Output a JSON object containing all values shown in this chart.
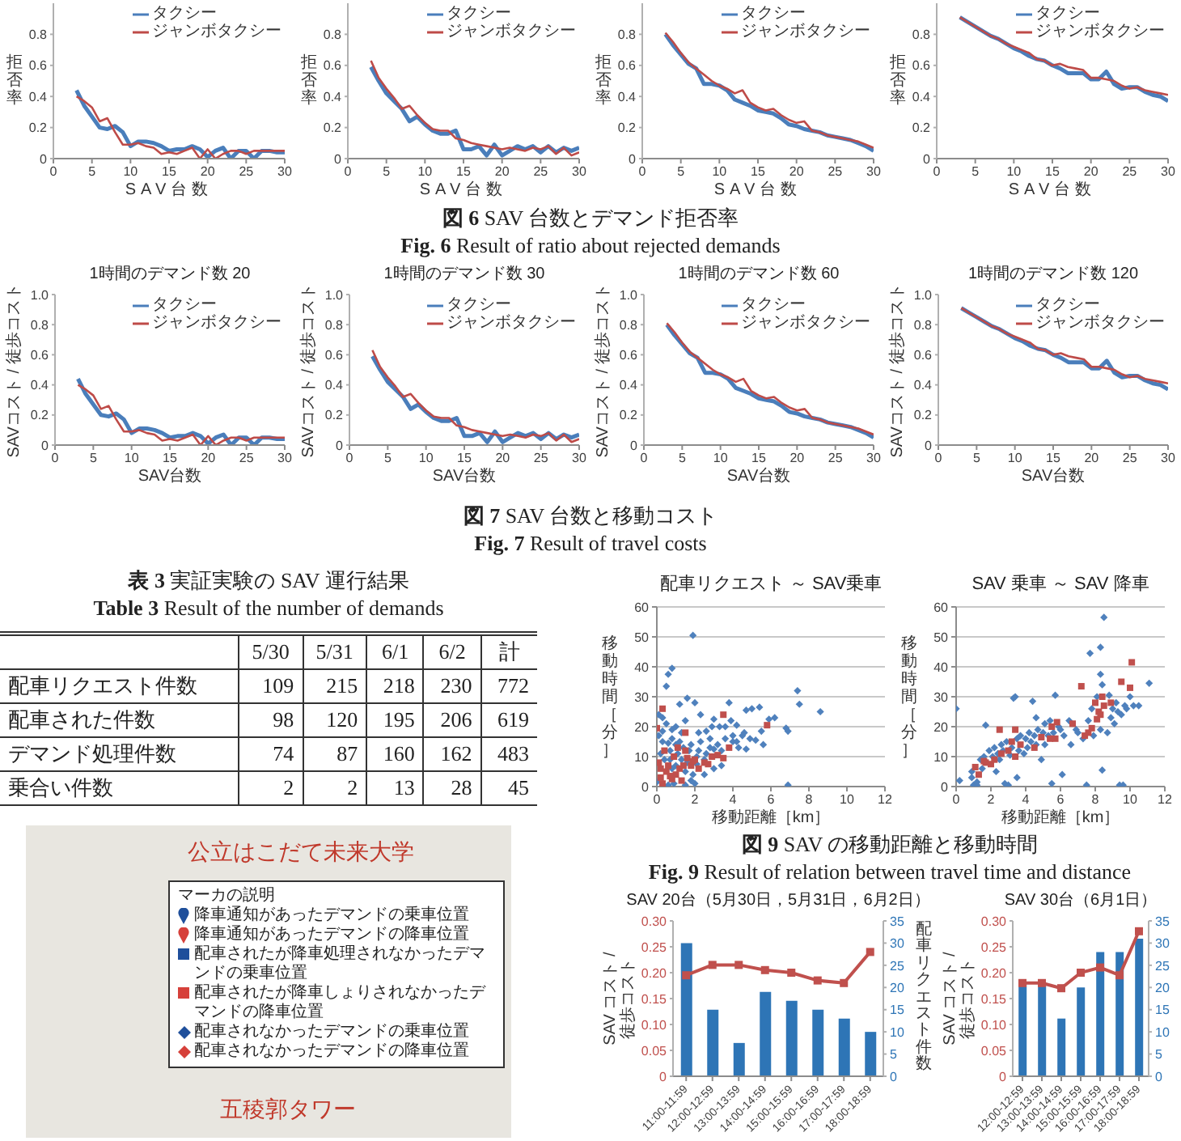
{
  "chart_data": [
    {
      "type": "line",
      "ylabel": "拒否率",
      "xlabel": "SAV台数",
      "x": [
        3,
        4,
        5,
        6,
        7,
        8,
        9,
        10,
        11,
        12,
        13,
        14,
        15,
        16,
        17,
        18,
        19,
        20,
        21,
        22,
        23,
        24,
        25,
        26,
        27,
        28,
        29,
        30
      ],
      "series": [
        {
          "name": "タクシー",
          "color": "#4a7ebb",
          "values": [
            0.44,
            0.34,
            0.27,
            0.2,
            0.19,
            0.21,
            0.17,
            0.08,
            0.11,
            0.11,
            0.1,
            0.08,
            0.05,
            0.06,
            0.06,
            0.08,
            0.06,
            0.01,
            0.05,
            0.07,
            0,
            0.05,
            0.05,
            0,
            0.05,
            0.05,
            0.04,
            0.04
          ]
        },
        {
          "name": "ジャンボタクシー",
          "color": "#be4b48",
          "values": [
            0.4,
            0.37,
            0.33,
            0.24,
            0.26,
            0.17,
            0.09,
            0.09,
            0.1,
            0.08,
            0.07,
            0.03,
            0.04,
            0.03,
            0.05,
            0.07,
            0,
            0.06,
            0,
            0.03,
            0.05,
            0.05,
            0.03,
            0.05,
            0.05,
            0.05,
            0.05,
            0.05
          ]
        }
      ],
      "xlim": [
        0,
        30
      ],
      "xticks": [
        0,
        5,
        10,
        15,
        20,
        25,
        30
      ],
      "ylim": [
        0,
        1
      ],
      "yticks": [
        0,
        0.2,
        0.4,
        0.6,
        0.8
      ],
      "legend": "top right",
      "annotations": [
        "図 6 SAV 台数とデマンド拒否率",
        "Fig. 6 Result of ratio about rejected demands"
      ]
    },
    {
      "type": "line",
      "ylabel": "拒否率",
      "xlabel": "SAV台数",
      "x": [
        3,
        4,
        5,
        6,
        7,
        8,
        9,
        10,
        11,
        12,
        13,
        14,
        15,
        16,
        17,
        18,
        19,
        20,
        21,
        22,
        23,
        24,
        25,
        26,
        27,
        28,
        29,
        30
      ],
      "series": [
        {
          "name": "タクシー",
          "color": "#4a7ebb",
          "values": [
            0.59,
            0.5,
            0.42,
            0.37,
            0.32,
            0.24,
            0.27,
            0.22,
            0.18,
            0.16,
            0.16,
            0.18,
            0.06,
            0.06,
            0.08,
            0.02,
            0.09,
            0.02,
            0.05,
            0.08,
            0.06,
            0.08,
            0.04,
            0.08,
            0.04,
            0.07,
            0.05,
            0.07
          ]
        },
        {
          "name": "ジャンボタクシー",
          "color": "#be4b48",
          "values": [
            0.63,
            0.52,
            0.45,
            0.39,
            0.32,
            0.34,
            0.28,
            0.23,
            0.19,
            0.18,
            0.18,
            0.13,
            0.12,
            0.1,
            0.09,
            0.08,
            0.07,
            0.06,
            0.07,
            0.06,
            0.05,
            0.07,
            0.06,
            0.08,
            0.03,
            0.07,
            0.02,
            0.04
          ]
        }
      ],
      "xlim": [
        0,
        30
      ],
      "xticks": [
        0,
        5,
        10,
        15,
        20,
        25,
        30
      ],
      "ylim": [
        0,
        1
      ],
      "yticks": [
        0,
        0.2,
        0.4,
        0.6,
        0.8
      ],
      "legend": "top right"
    },
    {
      "type": "line",
      "ylabel": "拒否率",
      "xlabel": "SAV台数",
      "x": [
        3,
        4,
        5,
        6,
        7,
        8,
        9,
        10,
        11,
        12,
        13,
        14,
        15,
        16,
        17,
        18,
        19,
        20,
        21,
        22,
        23,
        24,
        25,
        26,
        27,
        28,
        29,
        30
      ],
      "series": [
        {
          "name": "タクシー",
          "color": "#4a7ebb",
          "values": [
            0.8,
            0.73,
            0.67,
            0.61,
            0.58,
            0.48,
            0.48,
            0.47,
            0.44,
            0.38,
            0.36,
            0.34,
            0.31,
            0.3,
            0.29,
            0.26,
            0.22,
            0.21,
            0.19,
            0.18,
            0.17,
            0.15,
            0.14,
            0.13,
            0.12,
            0.1,
            0.08,
            0.05
          ]
        },
        {
          "name": "ジャンボタクシー",
          "color": "#be4b48",
          "values": [
            0.81,
            0.75,
            0.68,
            0.62,
            0.58,
            0.54,
            0.5,
            0.47,
            0.45,
            0.42,
            0.44,
            0.36,
            0.33,
            0.31,
            0.32,
            0.28,
            0.25,
            0.23,
            0.24,
            0.18,
            0.17,
            0.15,
            0.14,
            0.13,
            0.12,
            0.11,
            0.09,
            0.07
          ]
        }
      ],
      "xlim": [
        0,
        30
      ],
      "xticks": [
        0,
        5,
        10,
        15,
        20,
        25,
        30
      ],
      "ylim": [
        0,
        1
      ],
      "yticks": [
        0,
        0.2,
        0.4,
        0.6,
        0.8
      ],
      "legend": "top right"
    },
    {
      "type": "line",
      "ylabel": "拒否率",
      "xlabel": "SAV台数",
      "x": [
        3,
        4,
        5,
        6,
        7,
        8,
        9,
        10,
        11,
        12,
        13,
        14,
        15,
        16,
        17,
        18,
        19,
        20,
        21,
        22,
        23,
        24,
        25,
        26,
        27,
        28,
        29,
        30
      ],
      "series": [
        {
          "name": "タクシー",
          "color": "#4a7ebb",
          "values": [
            0.91,
            0.88,
            0.85,
            0.82,
            0.79,
            0.77,
            0.74,
            0.71,
            0.69,
            0.66,
            0.64,
            0.63,
            0.6,
            0.58,
            0.55,
            0.55,
            0.55,
            0.51,
            0.51,
            0.56,
            0.48,
            0.45,
            0.46,
            0.46,
            0.43,
            0.41,
            0.4,
            0.37
          ]
        },
        {
          "name": "ジャンボタクシー",
          "color": "#be4b48",
          "values": [
            0.91,
            0.88,
            0.85,
            0.82,
            0.79,
            0.77,
            0.74,
            0.72,
            0.7,
            0.68,
            0.64,
            0.63,
            0.6,
            0.61,
            0.59,
            0.58,
            0.57,
            0.52,
            0.52,
            0.51,
            0.5,
            0.47,
            0.45,
            0.46,
            0.44,
            0.43,
            0.42,
            0.41
          ]
        }
      ],
      "xlim": [
        0,
        30
      ],
      "xticks": [
        0,
        5,
        10,
        15,
        20,
        25,
        30
      ],
      "ylim": [
        0,
        1
      ],
      "yticks": [
        0,
        0.2,
        0.4,
        0.6,
        0.8
      ],
      "legend": "top right"
    },
    {
      "type": "line",
      "title": "1時間のデマンド数 20",
      "ylabel": "SAVコスト / 徒歩コスト",
      "xlabel": "SAV台数",
      "x": [
        3,
        4,
        5,
        6,
        7,
        8,
        9,
        10,
        11,
        12,
        13,
        14,
        15,
        16,
        17,
        18,
        19,
        20,
        21,
        22,
        23,
        24,
        25,
        26,
        27,
        28,
        29,
        30
      ],
      "series": [
        {
          "name": "タクシー",
          "color": "#4a7ebb",
          "values": [
            0.44,
            0.34,
            0.27,
            0.2,
            0.19,
            0.21,
            0.17,
            0.08,
            0.11,
            0.11,
            0.1,
            0.08,
            0.05,
            0.06,
            0.06,
            0.08,
            0.06,
            0.01,
            0.05,
            0.07,
            0,
            0.05,
            0.05,
            0,
            0.05,
            0.05,
            0.04,
            0.04
          ]
        },
        {
          "name": "ジャンボタクシー",
          "color": "#be4b48",
          "values": [
            0.4,
            0.37,
            0.33,
            0.24,
            0.26,
            0.17,
            0.09,
            0.09,
            0.1,
            0.08,
            0.07,
            0.03,
            0.04,
            0.03,
            0.05,
            0.07,
            0,
            0.06,
            0,
            0.03,
            0.05,
            0.05,
            0.03,
            0.05,
            0.05,
            0.05,
            0.05,
            0.05
          ]
        }
      ],
      "xlim": [
        0,
        30
      ],
      "xticks": [
        0,
        5,
        10,
        15,
        20,
        25,
        30
      ],
      "ylim": [
        0,
        1
      ],
      "yticks": [
        0,
        0.2,
        0.4,
        0.6,
        0.8,
        {
          "value": 1,
          "label": "1.0"
        }
      ],
      "legend": "top right",
      "annotations": [
        "図 7 SAV 台数と移動コスト",
        "Fig. 7 Result of travel costs"
      ]
    },
    {
      "type": "line",
      "title": "1時間のデマンド数 30",
      "ylabel": "SAVコスト / 徒歩コスト",
      "xlabel": "SAV台数",
      "x": [
        3,
        4,
        5,
        6,
        7,
        8,
        9,
        10,
        11,
        12,
        13,
        14,
        15,
        16,
        17,
        18,
        19,
        20,
        21,
        22,
        23,
        24,
        25,
        26,
        27,
        28,
        29,
        30
      ],
      "series": [
        {
          "name": "タクシー",
          "color": "#4a7ebb",
          "values": [
            0.59,
            0.5,
            0.42,
            0.37,
            0.32,
            0.24,
            0.27,
            0.22,
            0.18,
            0.16,
            0.16,
            0.18,
            0.06,
            0.06,
            0.08,
            0.02,
            0.09,
            0.02,
            0.05,
            0.08,
            0.06,
            0.08,
            0.04,
            0.08,
            0.04,
            0.07,
            0.05,
            0.07
          ]
        },
        {
          "name": "ジャンボタクシー",
          "color": "#be4b48",
          "values": [
            0.63,
            0.52,
            0.45,
            0.39,
            0.32,
            0.34,
            0.28,
            0.23,
            0.19,
            0.18,
            0.18,
            0.13,
            0.12,
            0.1,
            0.09,
            0.08,
            0.07,
            0.06,
            0.07,
            0.06,
            0.05,
            0.07,
            0.06,
            0.08,
            0.03,
            0.07,
            0.02,
            0.04
          ]
        }
      ],
      "xlim": [
        0,
        30
      ],
      "xticks": [
        0,
        5,
        10,
        15,
        20,
        25,
        30
      ],
      "ylim": [
        0,
        1
      ],
      "yticks": [
        0,
        0.2,
        0.4,
        0.6,
        0.8,
        {
          "value": 1,
          "label": "1.0"
        }
      ],
      "legend": "top right"
    },
    {
      "type": "line",
      "title": "1時間のデマンド数 60",
      "ylabel": "SAVコスト / 徒歩コスト",
      "xlabel": "SAV台数",
      "x": [
        3,
        4,
        5,
        6,
        7,
        8,
        9,
        10,
        11,
        12,
        13,
        14,
        15,
        16,
        17,
        18,
        19,
        20,
        21,
        22,
        23,
        24,
        25,
        26,
        27,
        28,
        29,
        30
      ],
      "series": [
        {
          "name": "タクシー",
          "color": "#4a7ebb",
          "values": [
            0.8,
            0.73,
            0.67,
            0.61,
            0.58,
            0.48,
            0.48,
            0.47,
            0.44,
            0.38,
            0.36,
            0.34,
            0.31,
            0.3,
            0.29,
            0.26,
            0.22,
            0.21,
            0.19,
            0.18,
            0.17,
            0.15,
            0.14,
            0.13,
            0.12,
            0.1,
            0.08,
            0.05
          ]
        },
        {
          "name": "ジャンボタクシー",
          "color": "#be4b48",
          "values": [
            0.81,
            0.75,
            0.68,
            0.62,
            0.58,
            0.54,
            0.5,
            0.47,
            0.45,
            0.42,
            0.44,
            0.36,
            0.33,
            0.31,
            0.32,
            0.28,
            0.25,
            0.23,
            0.24,
            0.18,
            0.17,
            0.15,
            0.14,
            0.13,
            0.12,
            0.11,
            0.09,
            0.07
          ]
        }
      ],
      "xlim": [
        0,
        30
      ],
      "xticks": [
        0,
        5,
        10,
        15,
        20,
        25,
        30
      ],
      "ylim": [
        0,
        1
      ],
      "yticks": [
        0,
        0.2,
        0.4,
        0.6,
        0.8,
        {
          "value": 1,
          "label": "1.0"
        }
      ],
      "legend": "top right"
    },
    {
      "type": "line",
      "title": "1時間のデマンド数 120",
      "ylabel": "SAVコスト / 徒歩コスト",
      "xlabel": "SAV台数",
      "x": [
        3,
        4,
        5,
        6,
        7,
        8,
        9,
        10,
        11,
        12,
        13,
        14,
        15,
        16,
        17,
        18,
        19,
        20,
        21,
        22,
        23,
        24,
        25,
        26,
        27,
        28,
        29,
        30
      ],
      "series": [
        {
          "name": "タクシー",
          "color": "#4a7ebb",
          "values": [
            0.91,
            0.88,
            0.85,
            0.82,
            0.79,
            0.77,
            0.74,
            0.71,
            0.69,
            0.66,
            0.64,
            0.63,
            0.6,
            0.58,
            0.55,
            0.55,
            0.55,
            0.51,
            0.51,
            0.56,
            0.48,
            0.45,
            0.46,
            0.46,
            0.43,
            0.41,
            0.4,
            0.37
          ]
        },
        {
          "name": "ジャンボタクシー",
          "color": "#be4b48",
          "values": [
            0.91,
            0.88,
            0.85,
            0.82,
            0.79,
            0.77,
            0.74,
            0.72,
            0.7,
            0.68,
            0.64,
            0.63,
            0.6,
            0.61,
            0.59,
            0.58,
            0.57,
            0.52,
            0.52,
            0.51,
            0.5,
            0.47,
            0.45,
            0.46,
            0.44,
            0.43,
            0.42,
            0.41
          ]
        }
      ],
      "xlim": [
        0,
        30
      ],
      "xticks": [
        0,
        5,
        10,
        15,
        20,
        25,
        30
      ],
      "ylim": [
        0,
        1
      ],
      "yticks": [
        0,
        0.2,
        0.4,
        0.6,
        0.8,
        {
          "value": 1,
          "label": "1.0"
        }
      ],
      "legend": "top right"
    },
    {
      "type": "other",
      "title": "表 3 実証実験の SAV 運行結果",
      "subtitle": "Table 3 Result of the number of demands",
      "categories": [
        "5/30",
        "5/31",
        "6/1",
        "6/2",
        "計"
      ],
      "series": [
        {
          "name": "配車リクエスト件数",
          "values": [
            109,
            215,
            218,
            230,
            772
          ]
        },
        {
          "name": "配車された件数",
          "values": [
            98,
            120,
            195,
            206,
            619
          ]
        },
        {
          "name": "デマンド処理件数",
          "values": [
            74,
            87,
            160,
            162,
            483
          ]
        },
        {
          "name": "乗合い件数",
          "values": [
            2,
            2,
            13,
            28,
            45
          ]
        }
      ],
      "data_labels": true
    },
    {
      "type": "other",
      "legend_title": "マーカの説明",
      "annotations": [
        "公立はこだて未来大学",
        "五稜郭タワー",
        "降車通知があったデマンドの乗車位置",
        "降車通知があったデマンドの降車位置",
        "配車されたが降車処理されなかったデマンドの乗車位置",
        "配車されたが降車しょりされなかったデマンドの降車位置",
        "配車されなかったデマンドの乗車位置",
        "配車されなかったデマンドの降車位置"
      ]
    },
    {
      "type": "scatter",
      "title": "配車リクエスト ～ SAV乗車",
      "xlabel": "移動距離［km］",
      "ylabel": "移動時間［分］",
      "xlim": [
        0,
        12
      ],
      "xticks": [
        0,
        2,
        4,
        6,
        8,
        10,
        12
      ],
      "ylim": [
        0,
        60
      ],
      "yticks": [
        0,
        10,
        20,
        30,
        40,
        50,
        60
      ],
      "grid": "y",
      "series": [
        {
          "color": "#4f81bd",
          "marker": "diamond",
          "x": [
            0,
            0.4,
            0.2,
            0.6,
            0.3,
            0.1,
            0.8,
            0.7,
            0.7,
            1.0,
            0.8,
            1.0,
            1.3,
            1.1,
            1.4,
            1.2,
            1.5,
            1.6,
            1.7,
            1.8,
            1.9,
            2.1,
            2.1,
            2.2,
            2.3,
            2.5,
            2.6,
            2.8,
            3.0,
            3.2,
            3.4,
            3.6,
            4.0,
            4.2,
            4.5,
            0.3,
            0.5,
            0.1,
            0.3,
            0.8,
            1.0,
            1.3,
            1.5,
            1.2,
            1.6,
            2.0,
            0.5,
            0.6,
            0.8,
            1.9,
            2.3,
            2.6,
            2.8,
            3.0,
            3.3,
            3.6,
            3.8,
            4.0,
            4.2,
            4.6,
            4.7,
            4.9,
            5.0,
            5.2,
            5.4,
            5.5,
            5.9,
            6.2,
            6.8,
            6.9,
            7.4,
            7.5,
            8.6,
            6.9,
            1.5,
            2.0,
            0.6,
            1.8,
            2.5,
            3.0,
            3.4,
            4.3,
            4.7,
            5.6,
            0.9,
            2.2,
            2.9,
            3.9
          ],
          "values": [
            1.5,
            9,
            11,
            14.5,
            15,
            17,
            6,
            9,
            12,
            14,
            16,
            7,
            9,
            11,
            13,
            15,
            5,
            8,
            12,
            14,
            4,
            7.5,
            10,
            12,
            15,
            9,
            11,
            13,
            12.5,
            14,
            12,
            16,
            15,
            15,
            17,
            18.5,
            21,
            24,
            23,
            19,
            20,
            18,
            22,
            27.5,
            29.5,
            28,
            33.5,
            37.5,
            39.5,
            50.5,
            24,
            18.5,
            16,
            22.5,
            20,
            20,
            28,
            17,
            20.5,
            18,
            25.5,
            16,
            26,
            15.5,
            26.5,
            18.5,
            22.5,
            23,
            19.5,
            18.5,
            32,
            27.5,
            25,
            0.5,
            0.5,
            1,
            0.5,
            2,
            4,
            6,
            7,
            13,
            12.5,
            14,
            1,
            18,
            20,
            22
          ]
        },
        {
          "color": "#c0504d",
          "marker": "square",
          "x": [
            0.3,
            0,
            1.5,
            3.5,
            5.8,
            3.8,
            3.5,
            2.5,
            2.0,
            1.8,
            1.2,
            0.5,
            0.2,
            0.8,
            1.0,
            0.3,
            2.9,
            1.5,
            0.6,
            0.9,
            0.1,
            1.6,
            2.2,
            0.4,
            1.1,
            0.2,
            1.3,
            2.7,
            3.2,
            1.9,
            0.7,
            1.4
          ],
          "values": [
            26,
            19.5,
            18,
            24,
            20.5,
            13,
            9.5,
            8,
            9,
            7,
            6,
            5,
            3,
            2.5,
            4,
            1,
            10,
            12,
            7,
            10,
            8,
            9.5,
            6,
            12,
            13,
            6,
            2,
            7.5,
            10.5,
            8.5,
            3.5,
            7
          ]
        }
      ],
      "annotations": [
        "図 9 SAV の移動距離と移動時間",
        "Fig. 9 Result of relation between travel time and distance"
      ]
    },
    {
      "type": "scatter",
      "title": "SAV 乗車 ～ SAV 降車",
      "xlabel": "移動距離［km］",
      "ylabel": "移動時間［分］",
      "xlim": [
        0,
        12
      ],
      "xticks": [
        0,
        2,
        4,
        6,
        8,
        10,
        12
      ],
      "ylim": [
        0,
        60
      ],
      "yticks": [
        0,
        10,
        20,
        30,
        40,
        50,
        60
      ],
      "grid": "y",
      "series": [
        {
          "color": "#4f81bd",
          "marker": "diamond",
          "x": [
            0,
            0.2,
            0.9,
            1.0,
            1.2,
            0.9,
            1.4,
            1.5,
            1.6,
            1.7,
            1.9,
            2.1,
            2.2,
            2.4,
            2.5,
            2.6,
            2.7,
            2.8,
            3.0,
            2.9,
            3.1,
            3.2,
            3.3,
            3.4,
            3.5,
            3.6,
            3.7,
            3.9,
            4.0,
            4.1,
            4.2,
            4.3,
            4.4,
            4.5,
            4.6,
            4.7,
            4.9,
            5.0,
            5.1,
            5.1,
            5.3,
            5.4,
            5.5,
            5.6,
            5.7,
            5.9,
            6.0,
            6.1,
            6.2,
            6.5,
            6.9,
            7.0,
            7.3,
            7.5,
            7.6,
            7.7,
            7.8,
            7.9,
            8.3,
            8.1,
            8.3,
            8.3,
            8.4,
            8.5,
            8.4,
            8.7,
            8.8,
            8.9,
            9.0,
            9.1,
            9.2,
            9.3,
            9.4,
            9.6,
            9.5,
            9.7,
            9.8,
            10.0,
            10.2,
            10.5,
            11.1,
            1.2,
            2.3,
            3.5,
            6.6,
            4.6
          ],
          "values": [
            26,
            2,
            5,
            0.5,
            0.5,
            3,
            9,
            6,
            10,
            20.5,
            12,
            10,
            13,
            11,
            9,
            14,
            12,
            1,
            0.5,
            15,
            10.5,
            13,
            29.5,
            30,
            16,
            12,
            17,
            11,
            16,
            13,
            18,
            15,
            28.5,
            17,
            14,
            19,
            9,
            18,
            21,
            14,
            17,
            22,
            1,
            18,
            30.5,
            20,
            19,
            4,
            17,
            22,
            19,
            18,
            16,
            0.5,
            22,
            44.5,
            26,
            17,
            19,
            30,
            46.5,
            37.5,
            5.5,
            56.5,
            34,
            18,
            30.5,
            23,
            26,
            21,
            28,
            25,
            0.5,
            0.5,
            24,
            27,
            26,
            30,
            27,
            27,
            34.5,
            1.5,
            5,
            3,
            14,
            23
          ]
        },
        {
          "color": "#c0504d",
          "marker": "square",
          "x": [
            10.1,
            9.5,
            10.0,
            7.2,
            8.4,
            8.0,
            8.2,
            8.1,
            7.6,
            7.8,
            8.9,
            6.7,
            5.8,
            5.5,
            5.4,
            5.7,
            3.7,
            3.2,
            3.0,
            2.6,
            2.5,
            3.4,
            2.2,
            1.7,
            1.6,
            1.1,
            1.3,
            3.4,
            4.5,
            8.3,
            8.5,
            7.4,
            2.0,
            4.9
          ],
          "values": [
            41.5,
            35,
            33,
            33.5,
            30,
            28,
            25,
            22.5,
            18,
            19.5,
            28,
            21,
            21.5,
            20,
            16,
            16,
            14,
            15,
            12,
            11,
            19,
            19,
            9,
            8,
            8.5,
            6.5,
            4,
            10,
            13,
            24,
            27,
            17,
            7.5,
            16.5
          ]
        }
      ]
    },
    {
      "type": "bar",
      "title": "SAV 20台（5月30日，5月31日，6月2日）",
      "ylabel": "SAV コスト / 徒歩コスト",
      "y2label": "配車リクエスト件数",
      "categories": [
        "11:00-11:59",
        "12:00-12:59",
        "13:00-13:59",
        "14:00-14:59",
        "15:00-15:59",
        "16:00-16:59",
        "17:00-17:59",
        "18:00-18:59"
      ],
      "series": [
        {
          "type": "bar",
          "axis": "y2",
          "color": "#2e75b6",
          "values": [
            30,
            15,
            7.5,
            19,
            17,
            15,
            13,
            10
          ]
        },
        {
          "type": "line",
          "color": "#c0504d",
          "marker": "square",
          "values": [
            0.195,
            0.215,
            0.215,
            0.205,
            0.2,
            0.185,
            0.18,
            0.24
          ]
        }
      ],
      "ylim": [
        0,
        0.3
      ],
      "yticks": [
        0,
        0.05,
        {
          "value": 0.1,
          "label": "0.10"
        },
        0.15,
        {
          "value": 0.2,
          "label": "0.20"
        },
        0.25,
        {
          "value": 0.3,
          "label": "0.30"
        }
      ],
      "y2lim": [
        0,
        35
      ],
      "y2ticks": [
        0,
        5,
        10,
        15,
        20,
        25,
        30,
        35
      ]
    },
    {
      "type": "bar",
      "title": "SAV 30台（6月1日）",
      "ylabel": "SAV コスト / 徒歩コスト",
      "categories": [
        "12:00-12:59",
        "13:00-13:59",
        "14:00-14:59",
        "15:00-15:59",
        "16:00-16:59",
        "17:00-17:59",
        "18:00-18:59"
      ],
      "series": [
        {
          "type": "bar",
          "axis": "y2",
          "color": "#2e75b6",
          "values": [
            21,
            21,
            13,
            20,
            28,
            28,
            31
          ]
        },
        {
          "type": "line",
          "color": "#c0504d",
          "marker": "square",
          "values": [
            0.18,
            0.18,
            0.17,
            0.2,
            0.21,
            0.195,
            0.28
          ]
        }
      ],
      "ylim": [
        0,
        0.3
      ],
      "yticks": [
        0,
        0.05,
        {
          "value": 0.1,
          "label": "0.10"
        },
        0.15,
        {
          "value": 0.2,
          "label": "0.20"
        },
        0.25,
        {
          "value": 0.3,
          "label": "0.30"
        }
      ],
      "y2lim": [
        0,
        35
      ],
      "y2ticks": [
        0,
        5,
        10,
        15,
        20,
        25,
        30,
        35
      ]
    }
  ]
}
